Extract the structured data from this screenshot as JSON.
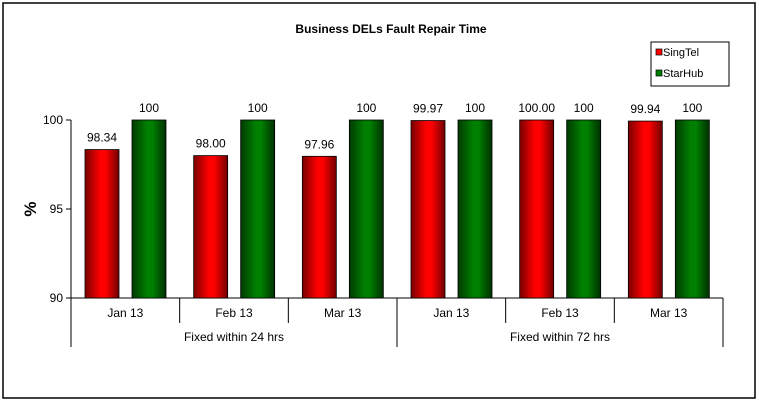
{
  "chart_data": {
    "type": "bar",
    "title": "Business DELs Fault Repair Time",
    "ylabel": "%",
    "xlabel": "",
    "ylim": [
      90,
      100
    ],
    "yticks": [
      "90",
      "95",
      "100"
    ],
    "grid": false,
    "legend_position": "top-right",
    "categories": [
      "Jan 13",
      "Feb 13",
      "Mar 13",
      "Jan 13",
      "Feb 13",
      "Mar 13"
    ],
    "category_groups": [
      {
        "label": "Fixed within 24 hrs",
        "span": 3
      },
      {
        "label": "Fixed within 72 hrs",
        "span": 3
      }
    ],
    "series": [
      {
        "name": "SingTel",
        "color": "#ff0000",
        "values": [
          98.34,
          98.0,
          97.96,
          99.97,
          100.0,
          99.94
        ],
        "labels": [
          "98.34",
          "98.00",
          "97.96",
          "99.97",
          "100.00",
          "99.94"
        ]
      },
      {
        "name": "StarHub",
        "color": "#008000",
        "values": [
          100,
          100,
          100,
          100,
          100,
          100
        ],
        "labels": [
          "100",
          "100",
          "100",
          "100",
          "100",
          "100"
        ]
      }
    ]
  }
}
